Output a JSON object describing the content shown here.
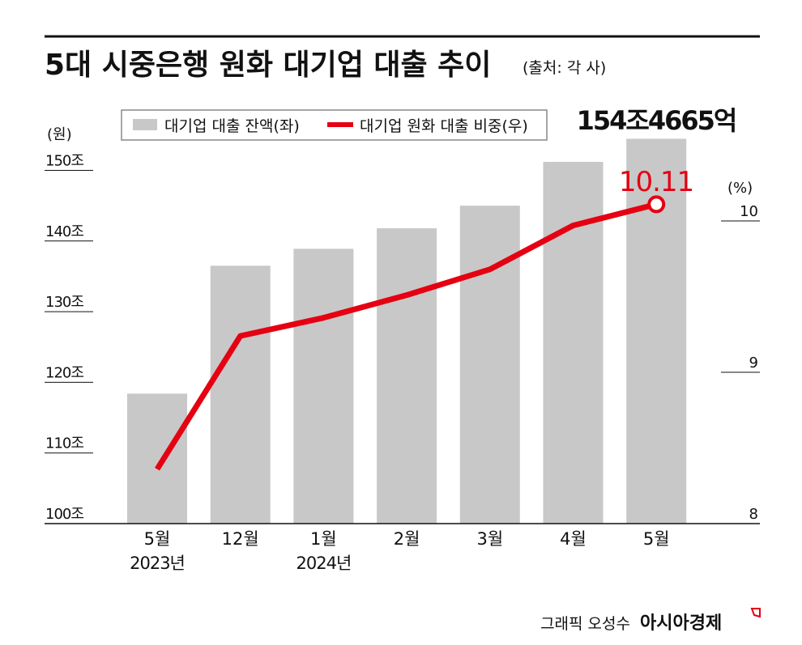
{
  "header": {
    "title": "5대 시중은행 원화 대기업 대출 추이",
    "source": "(출처: 각 사)"
  },
  "chart_data": {
    "type": "bar+line",
    "title": "5대 시중은행 원화 대기업 대출 추이",
    "categories": [
      "5월",
      "12월",
      "1월",
      "2월",
      "3월",
      "4월",
      "5월"
    ],
    "year_labels": [
      "2023년",
      "",
      "2024년",
      "",
      "",
      "",
      ""
    ],
    "y_left": {
      "unit": "(원)",
      "range": [
        100,
        155
      ],
      "ticks": [
        100,
        110,
        120,
        130,
        140,
        150
      ],
      "tick_labels": [
        "100조",
        "110조",
        "120조",
        "130조",
        "140조",
        "150조"
      ]
    },
    "y_right": {
      "unit": "(%)",
      "range": [
        8,
        10.3
      ],
      "ticks": [
        8,
        9,
        10
      ],
      "tick_labels": [
        "8",
        "9",
        "10"
      ]
    },
    "series": [
      {
        "name": "대기업 대출 잔액(좌)",
        "type": "bar",
        "axis": "left",
        "color": "#c8c8c8",
        "values": [
          118.4,
          136.5,
          138.9,
          141.8,
          145.0,
          151.2,
          154.4665
        ]
      },
      {
        "name": "대기업 원화 대출 비중(우)",
        "type": "line",
        "axis": "right",
        "color": "#e50012",
        "values": [
          8.36,
          9.24,
          9.36,
          9.51,
          9.68,
          9.97,
          10.11
        ]
      }
    ],
    "annotations": {
      "last_bar": "154조4665억",
      "last_point": "10.11"
    },
    "grid": false,
    "legend": "top-left"
  },
  "footer": {
    "credit": "그래픽 오성수",
    "brand": "아시아경제"
  },
  "colors": {
    "accent": "#e50012",
    "bar": "#c8c8c8",
    "text": "#111111"
  }
}
